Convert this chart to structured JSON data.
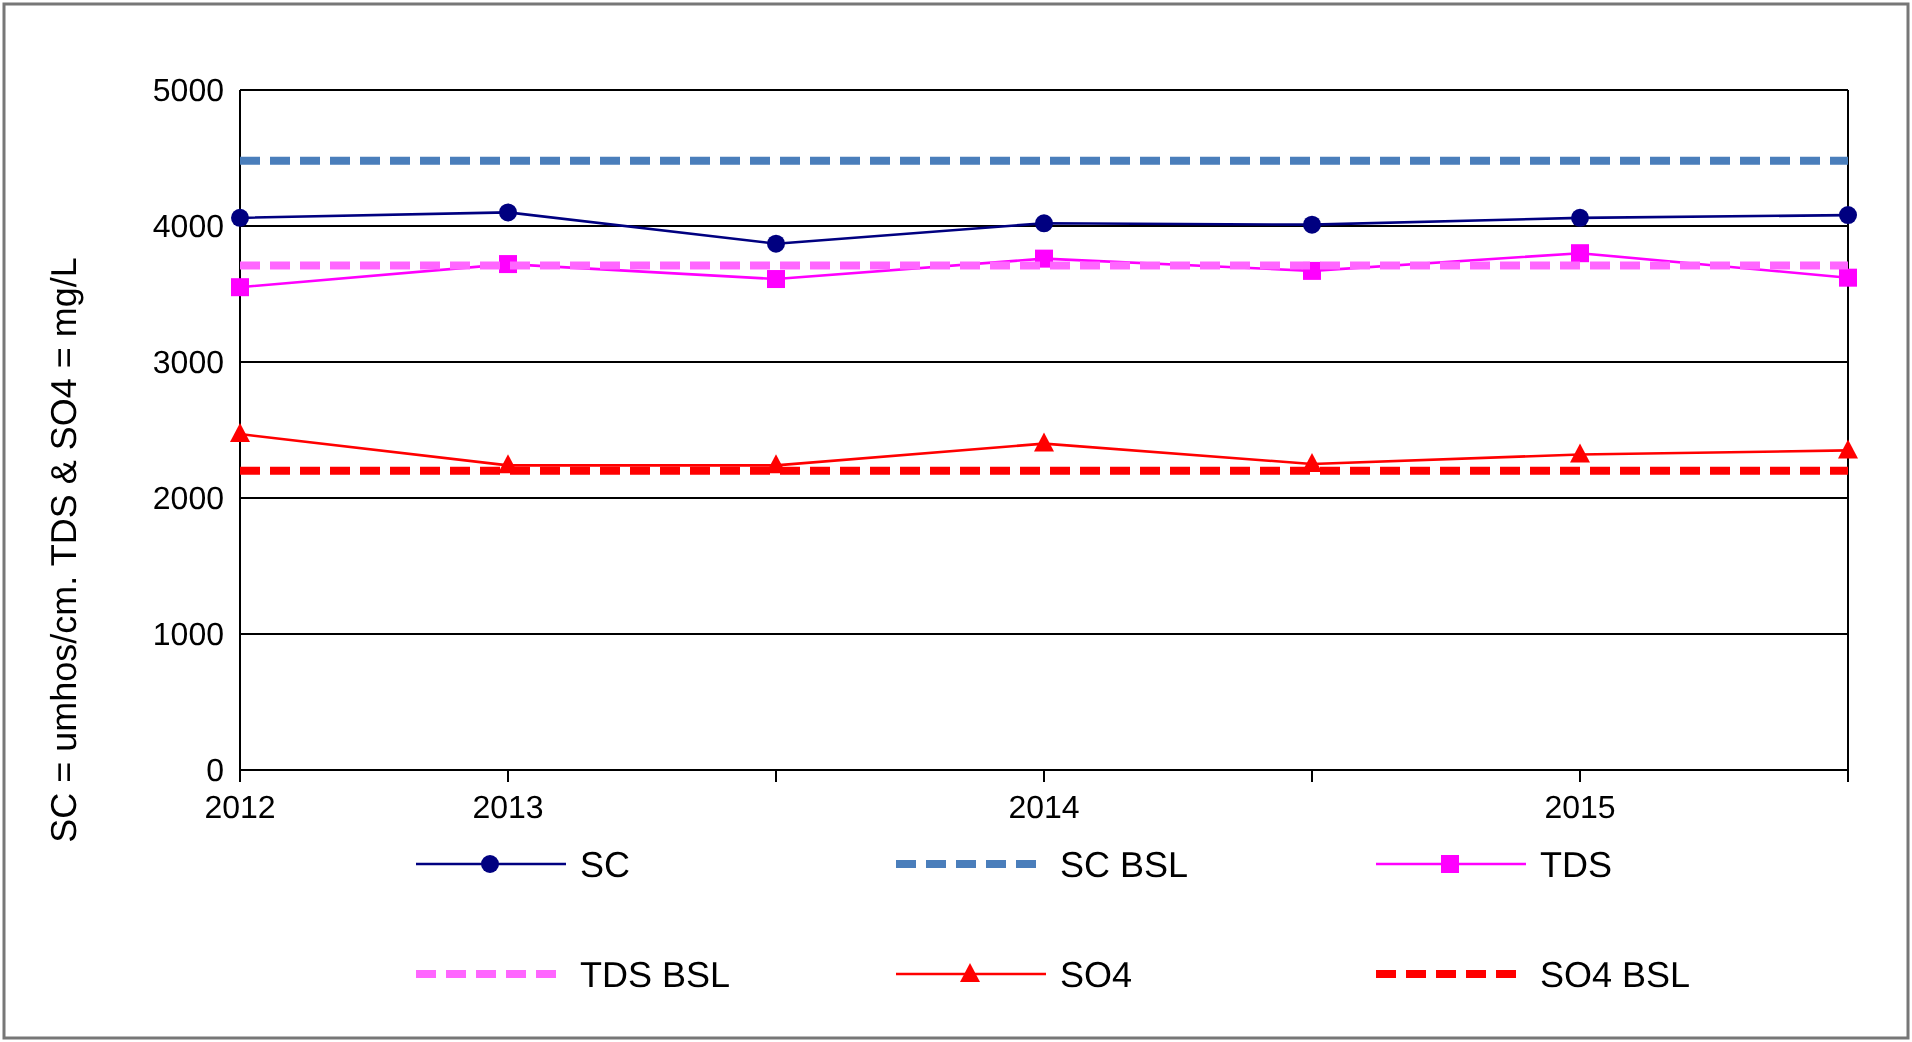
{
  "chart_data": {
    "type": "line",
    "ylabel": "SC = umhos/cm. TDS & SO4 = mg/L",
    "categories": [
      "2012",
      "2013",
      null,
      "2014",
      null,
      "2015",
      null
    ],
    "ylim": [
      0,
      5000
    ],
    "yticks": [
      0,
      1000,
      2000,
      3000,
      4000,
      5000
    ],
    "grid": "y",
    "legend": "bottom",
    "series": [
      {
        "name": "SC",
        "color": "#000080",
        "marker": "circle",
        "line_style": "solid",
        "values": [
          4060,
          4100,
          3870,
          4020,
          4010,
          4060,
          4080
        ]
      },
      {
        "name": "SC BSL",
        "color": "#4a7ebb",
        "marker": "none",
        "line_style": "dashed",
        "values": [
          4480,
          4480,
          4480,
          4480,
          4480,
          4480,
          4480
        ]
      },
      {
        "name": "TDS",
        "color": "#ff00ff",
        "marker": "square",
        "line_style": "solid",
        "values": [
          3550,
          3720,
          3610,
          3760,
          3670,
          3800,
          3620
        ]
      },
      {
        "name": "TDS BSL",
        "color": "#ff66ff",
        "marker": "none",
        "line_style": "dashed",
        "values": [
          3710,
          3710,
          3710,
          3710,
          3710,
          3710,
          3710
        ]
      },
      {
        "name": "SO4",
        "color": "#ff0000",
        "marker": "triangle",
        "line_style": "solid",
        "values": [
          2470,
          2240,
          2240,
          2400,
          2250,
          2320,
          2350
        ]
      },
      {
        "name": "SO4 BSL",
        "color": "#ff0000",
        "marker": "none",
        "line_style": "dashed",
        "values": [
          2200,
          2200,
          2200,
          2200,
          2200,
          2200,
          2200
        ]
      }
    ]
  }
}
